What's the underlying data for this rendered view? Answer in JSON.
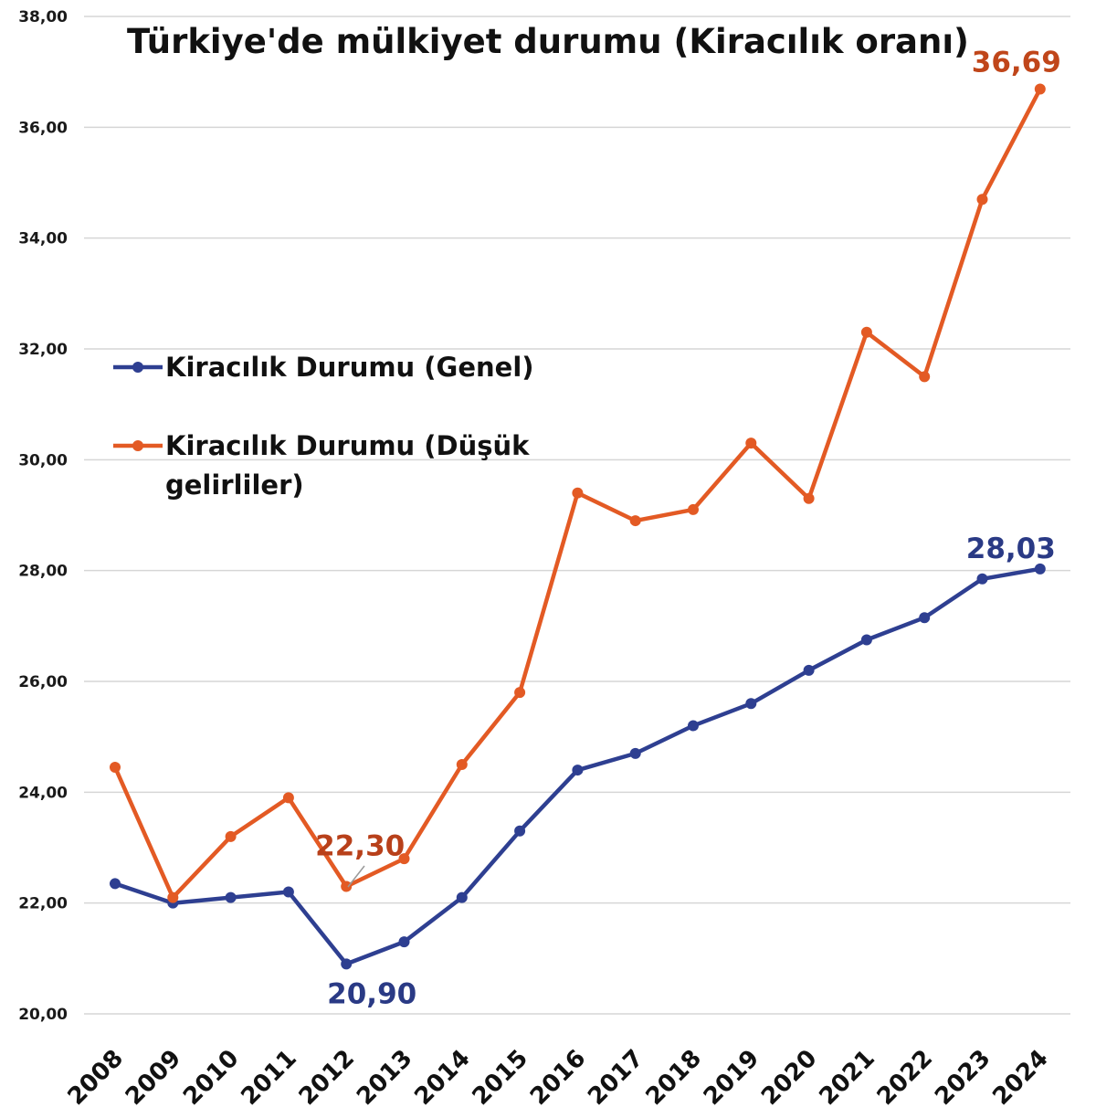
{
  "chart_data": {
    "type": "line",
    "title": "Türkiye'de mülkiyet durumu (Kiracılık oranı)",
    "xlabel": "",
    "ylabel": "",
    "ylim": [
      20,
      38
    ],
    "yticks": [
      "20,00",
      "22,00",
      "24,00",
      "26,00",
      "28,00",
      "30,00",
      "32,00",
      "34,00",
      "36,00",
      "38,00"
    ],
    "grid": true,
    "legend_position": "left-middle",
    "categories": [
      "2008",
      "2009",
      "2010",
      "2011",
      "2012",
      "2013",
      "2014",
      "2015",
      "2016",
      "2017",
      "2018",
      "2019",
      "2020",
      "2021",
      "2022",
      "2023",
      "2024"
    ],
    "series": [
      {
        "name": "Kiracılık Durumu (Genel)",
        "color": "#2e3f91",
        "values": [
          22.35,
          22.0,
          22.1,
          22.2,
          20.9,
          21.3,
          22.1,
          23.3,
          24.4,
          24.7,
          25.2,
          25.6,
          26.2,
          26.75,
          27.15,
          27.85,
          28.03
        ]
      },
      {
        "name": "Kiracılık Durumu (Düşük gelirliler)",
        "color": "#e35a24",
        "values": [
          24.45,
          22.1,
          23.2,
          23.9,
          22.3,
          22.8,
          24.5,
          25.8,
          29.4,
          28.9,
          29.1,
          30.3,
          29.3,
          32.3,
          31.5,
          34.7,
          36.69
        ]
      }
    ],
    "annotations": [
      {
        "text": "36,69",
        "series": 1,
        "index": 16,
        "color": "#c0461a"
      },
      {
        "text": "22,30",
        "series": 1,
        "index": 4,
        "color": "#b8401a"
      },
      {
        "text": "28,03",
        "series": 0,
        "index": 16,
        "color": "#2a3a85"
      },
      {
        "text": "20,90",
        "series": 0,
        "index": 4,
        "color": "#2a3a85"
      }
    ]
  }
}
